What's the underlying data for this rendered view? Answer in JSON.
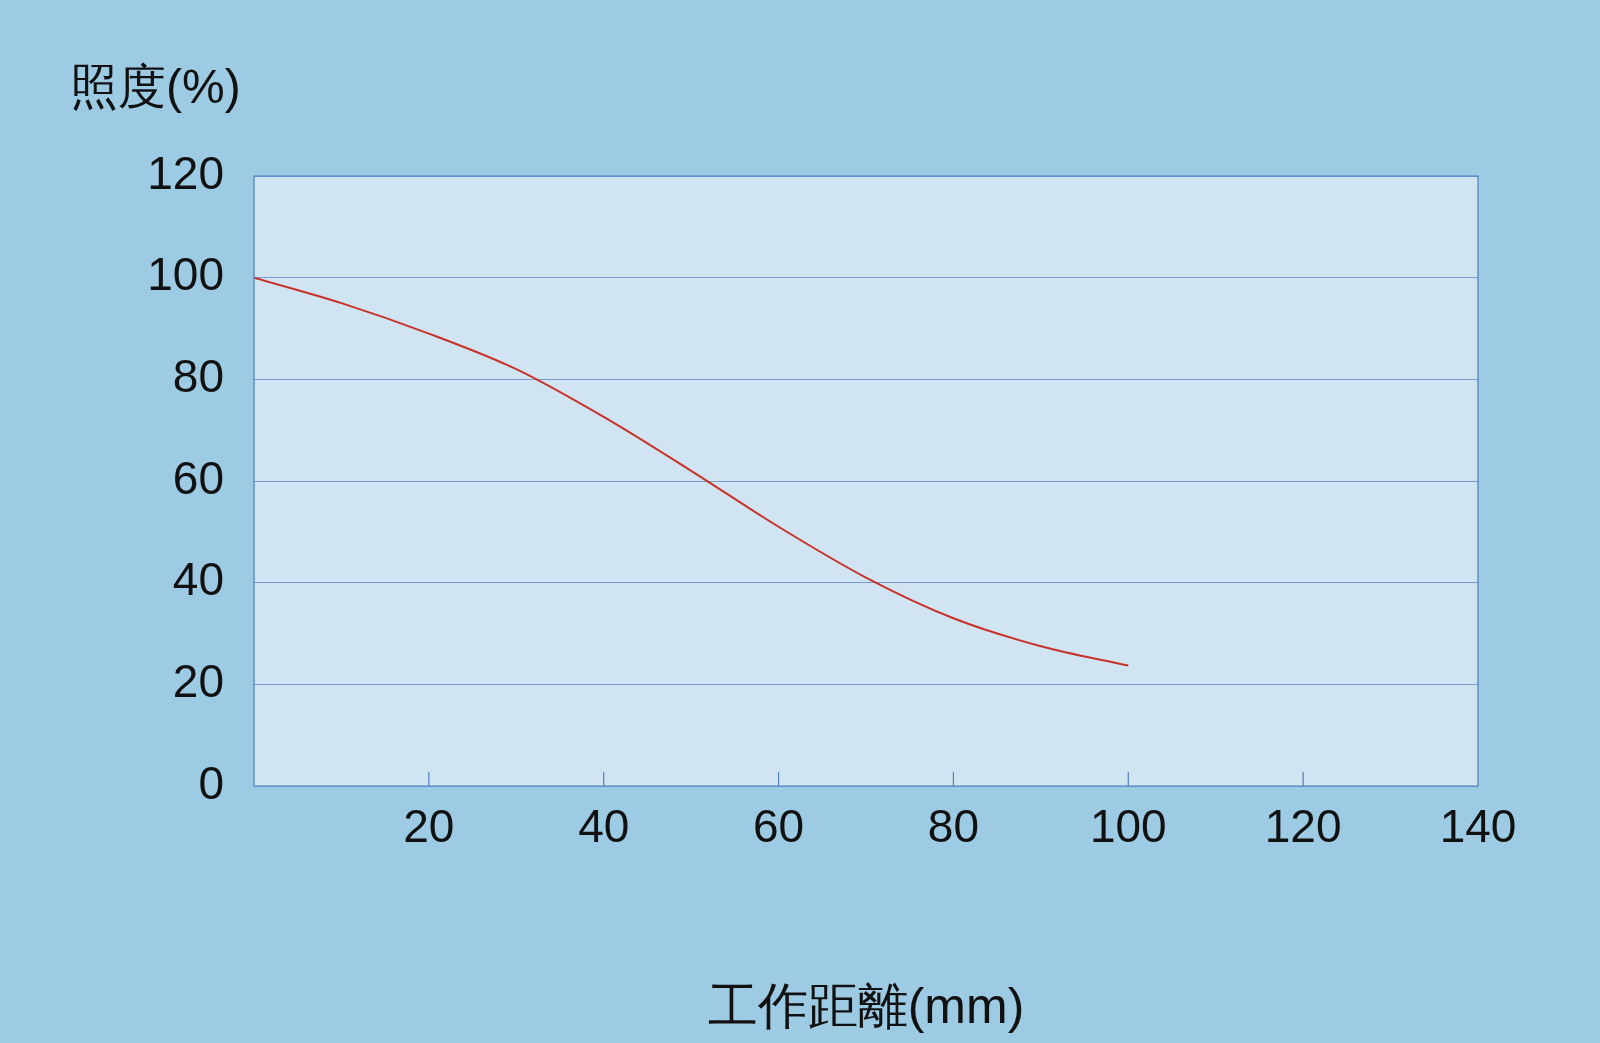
{
  "chart_data": {
    "type": "line",
    "xlabel": "工作距離(mm)",
    "ylabel": "照度(%)",
    "x": [
      0,
      10,
      20,
      30,
      40,
      50,
      60,
      70,
      80,
      90,
      100
    ],
    "series": [
      {
        "color": "#c8322a",
        "values": [
          100,
          95,
          89,
          82,
          72.6,
          62,
          51,
          41,
          33,
          27.5,
          23.7
        ]
      }
    ],
    "xlim": [
      0,
      140
    ],
    "xticks": [
      {
        "value": 0,
        "label": null
      },
      20,
      40,
      60,
      80,
      100,
      120,
      140
    ],
    "ylim": [
      0,
      120
    ],
    "yticks": [
      0,
      20,
      40,
      60,
      80,
      100,
      120
    ],
    "grid": "y",
    "legend": false,
    "marker": "none",
    "line_style": "solid"
  }
}
